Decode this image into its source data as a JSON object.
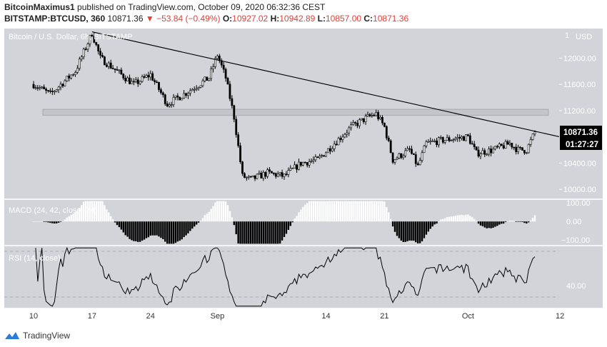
{
  "header": {
    "author": "BitcoinMaximus1",
    "published": "published on TradingView.com, October 09, 2020 06:32:36 CEST",
    "symbol": "BITSTAMP:BTCUSD, 360",
    "price": "10871.36",
    "change": "▼ −53.84 (−0.49%)",
    "open_label": "O:",
    "open": "10927.02",
    "high_label": "H:",
    "high": "10942.89",
    "low_label": "L:",
    "low": "10857.00",
    "close_label": "C:",
    "close": "10871.36"
  },
  "footer": {
    "brand": "TradingView"
  },
  "colors": {
    "background": "#d3d4da",
    "candle": "#000000",
    "macd_positive": "#ffffff",
    "macd_negative": "#000000",
    "trendline": "#000000",
    "zone": "#c4c5cb",
    "price_badge_bg": "#000000",
    "price_badge_fg": "#ffffff"
  },
  "chart_data": {
    "type": "candlestick",
    "title": "Bitcoin / U.S. Dollar, 6h, BITSTAMP",
    "currency_label": "USD",
    "last_price": "10871.36",
    "countdown": "01:27:27",
    "price_axis_ticks": [
      "12000.00",
      "11600.00",
      "11200.00",
      "10800.00",
      "10400.00",
      "10000.00"
    ],
    "price_axis_cut_label": "1",
    "ylim": [
      9850,
      12450
    ],
    "x_tick_labels": [
      "10",
      "17",
      "24",
      "Sep",
      "14",
      "21",
      "Oct",
      "12"
    ],
    "price_anchors": [
      [
        "Aug 10",
        11600
      ],
      [
        "Aug 12",
        11450
      ],
      [
        "Aug 15",
        11800
      ],
      [
        "Aug 17",
        12380
      ],
      [
        "Aug 18",
        12000
      ],
      [
        "Aug 20",
        11800
      ],
      [
        "Aug 22",
        11600
      ],
      [
        "Aug 24",
        11750
      ],
      [
        "Aug 26",
        11300
      ],
      [
        "Aug 28",
        11450
      ],
      [
        "Aug 31",
        11700
      ],
      [
        "Sep 1",
        12050
      ],
      [
        "Sep 2",
        11700
      ],
      [
        "Sep 3",
        11100
      ],
      [
        "Sep 4",
        10200
      ],
      [
        "Sep 5",
        10150
      ],
      [
        "Sep 7",
        10250
      ],
      [
        "Sep 9",
        10200
      ],
      [
        "Sep 11",
        10400
      ],
      [
        "Sep 13",
        10450
      ],
      [
        "Sep 15",
        10700
      ],
      [
        "Sep 17",
        10950
      ],
      [
        "Sep 19",
        11100
      ],
      [
        "Sep 20",
        11150
      ],
      [
        "Sep 21",
        10950
      ],
      [
        "Sep 22",
        10450
      ],
      [
        "Sep 24",
        10600
      ],
      [
        "Sep 25",
        10350
      ],
      [
        "Sep 26",
        10700
      ],
      [
        "Sep 28",
        10750
      ],
      [
        "Oct 1",
        10800
      ],
      [
        "Oct 2",
        10550
      ],
      [
        "Oct 4",
        10600
      ],
      [
        "Oct 6",
        10700
      ],
      [
        "Oct 7",
        10600
      ],
      [
        "Oct 8",
        10600
      ],
      [
        "Oct 9",
        10871
      ]
    ],
    "resistance_zone": [
      11130,
      11220
    ],
    "trendline": [
      [
        "Aug 17",
        12400
      ],
      [
        "Oct 12",
        10800
      ]
    ],
    "macd": {
      "label": "MACD (24, 42, close, 24)",
      "ticks": [
        "100.00",
        "0.00",
        "−100.00"
      ],
      "ylim": [
        -130,
        120
      ]
    },
    "rsi": {
      "label": "RSI (14, close)",
      "ticks": [
        "40.00"
      ],
      "ylim": [
        20,
        75
      ],
      "levels": [
        70,
        30
      ]
    }
  }
}
